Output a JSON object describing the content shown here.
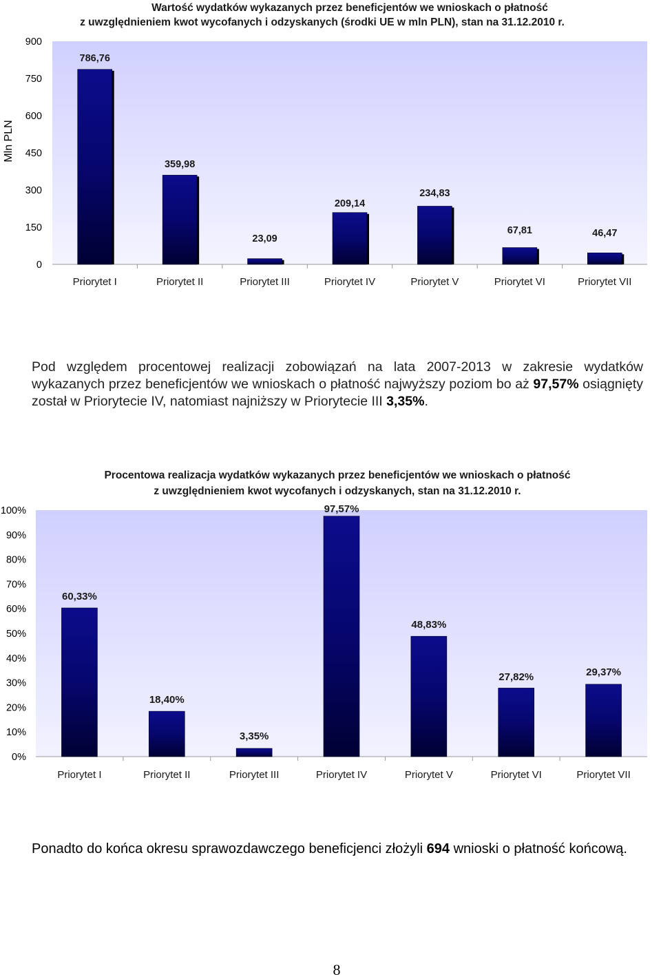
{
  "chart_data": [
    {
      "type": "bar",
      "title_line1": "Wartość wydatków wykazanych przez beneficjentów we wnioskach o płatność",
      "title_line2": "z uwzględnieniem kwot wycofanych i odzyskanych (środki UE w mln PLN), stan na 31.12.2010 r.",
      "ylabel": "Mln PLN",
      "xlabel": "",
      "ylim": [
        0,
        900
      ],
      "yticks": [
        "0",
        "150",
        "300",
        "450",
        "600",
        "750",
        "900"
      ],
      "categories": [
        "Priorytet I",
        "Priorytet II",
        "Priorytet III",
        "Priorytet IV",
        "Priorytet V",
        "Priorytet VI",
        "Priorytet VII"
      ],
      "values": [
        786.76,
        359.98,
        23.09,
        209.14,
        234.83,
        67.81,
        46.47
      ],
      "labels": [
        "786,76",
        "359,98",
        "23,09",
        "209,14",
        "234,83",
        "67,81",
        "46,47"
      ],
      "bar_color": "#000066",
      "plot_bg": "#ccccff",
      "grid": false
    },
    {
      "type": "bar",
      "title_line1": "Procentowa realizacja wydatków wykazanych przez beneficjentów we wnioskach o płatność",
      "title_line2": "z uwzględnieniem kwot wycofanych i odzyskanych, stan na 31.12.2010 r.",
      "ylabel": "",
      "xlabel": "",
      "ylim": [
        0,
        100
      ],
      "yticks": [
        "0%",
        "10%",
        "20%",
        "30%",
        "40%",
        "50%",
        "60%",
        "70%",
        "80%",
        "90%",
        "100%"
      ],
      "categories": [
        "Priorytet I",
        "Priorytet II",
        "Priorytet III",
        "Priorytet IV",
        "Priorytet V",
        "Priorytet VI",
        "Priorytet VII"
      ],
      "values": [
        60.33,
        18.4,
        3.35,
        97.57,
        48.83,
        27.82,
        29.37
      ],
      "labels": [
        "60,33%",
        "18,40%",
        "3,35%",
        "97,57%",
        "48,83%",
        "27,82%",
        "29,37%"
      ],
      "bar_color": "#000066",
      "plot_bg": "#ccccff",
      "grid": false
    }
  ],
  "text": {
    "para1_a": "Pod względem procentowej realizacji zobowiązań na lata 2007-2013 w zakresie wydatków wykazanych przez beneficjentów we wnioskach o płatność najwyższy poziom bo aż ",
    "para1_b": "97,57%",
    "para1_c": " osiągnięty został w Priorytecie IV, natomiast najniższy w Priorytecie III ",
    "para1_d": "3,35%",
    "para1_e": ".",
    "para2_a": "Ponadto do końca okresu sprawozdawczego beneficjenci złożyli ",
    "para2_b": "694",
    "para2_c": " wnioski o płatność końcową.",
    "page_number": "8"
  }
}
